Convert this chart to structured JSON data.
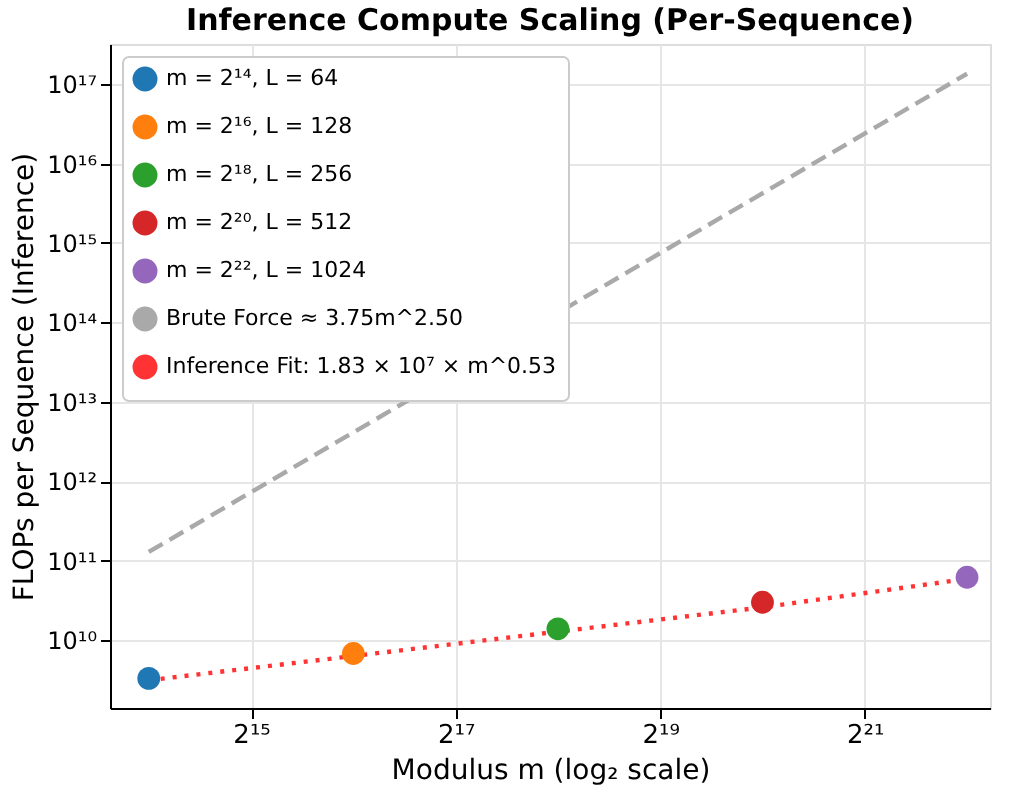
{
  "chart_data": {
    "type": "scatter",
    "title": "Inference Compute Scaling (Per-Sequence)",
    "xlabel": "Modulus m (log₂ scale)",
    "ylabel": "FLOPs per Sequence (Inference)",
    "log": "xy",
    "grid": true,
    "legend": "top left",
    "marker": "circle",
    "xlim": [
      12600,
      4900000
    ],
    "ylim": [
      1400000000,
      320000000000000000
    ],
    "xticks": [
      {
        "value": 32768,
        "label": "2¹⁵"
      },
      {
        "value": 131072,
        "label": "2¹⁷"
      },
      {
        "value": 524288,
        "label": "2¹⁹"
      },
      {
        "value": 2097152,
        "label": "2²¹"
      }
    ],
    "yticks": [
      {
        "value": 10000000000,
        "label": "10¹⁰"
      },
      {
        "value": 100000000000,
        "label": "10¹¹"
      },
      {
        "value": 1000000000000,
        "label": "10¹²"
      },
      {
        "value": 10000000000000,
        "label": "10¹³"
      },
      {
        "value": 100000000000000,
        "label": "10¹⁴"
      },
      {
        "value": 1000000000000000,
        "label": "10¹⁵"
      },
      {
        "value": 10000000000000000,
        "label": "10¹⁶"
      },
      {
        "value": 100000000000000000,
        "label": "10¹⁷"
      }
    ],
    "series": [
      {
        "name": "m = 2¹⁴, L = 64",
        "color": "#1f77b4",
        "x": [
          16384
        ],
        "values": [
          3300000000
        ]
      },
      {
        "name": "m = 2¹⁶, L = 128",
        "color": "#ff7f0e",
        "x": [
          65536
        ],
        "values": [
          6800000000
        ]
      },
      {
        "name": "m = 2¹⁸, L = 256",
        "color": "#2ca02c",
        "x": [
          262144
        ],
        "values": [
          13900000000
        ]
      },
      {
        "name": "m = 2²⁰, L = 512",
        "color": "#d62728",
        "x": [
          1048576
        ],
        "values": [
          30000000000
        ]
      },
      {
        "name": "m = 2²², L = 1024",
        "color": "#9467bd",
        "x": [
          4194304
        ],
        "values": [
          62000000000
        ]
      },
      {
        "name": "Brute Force ≈ 3.75m^2.50",
        "color": "#a9a9a9",
        "type": "line",
        "line_style": "dashed",
        "marker": "none",
        "x": [
          16384,
          4194304
        ],
        "values": [
          129000000000,
          135000000000000000
        ]
      },
      {
        "name": "Inference Fit: 1.83 × 10⁷ × m^0.53",
        "color": "#ff3333",
        "type": "line",
        "line_style": "dotted",
        "marker": "none",
        "x": [
          16384,
          65536,
          262144,
          1048576,
          4194304
        ],
        "values": [
          3130000000,
          6320000000,
          12800000000,
          25900000000,
          59200000000
        ]
      }
    ]
  }
}
